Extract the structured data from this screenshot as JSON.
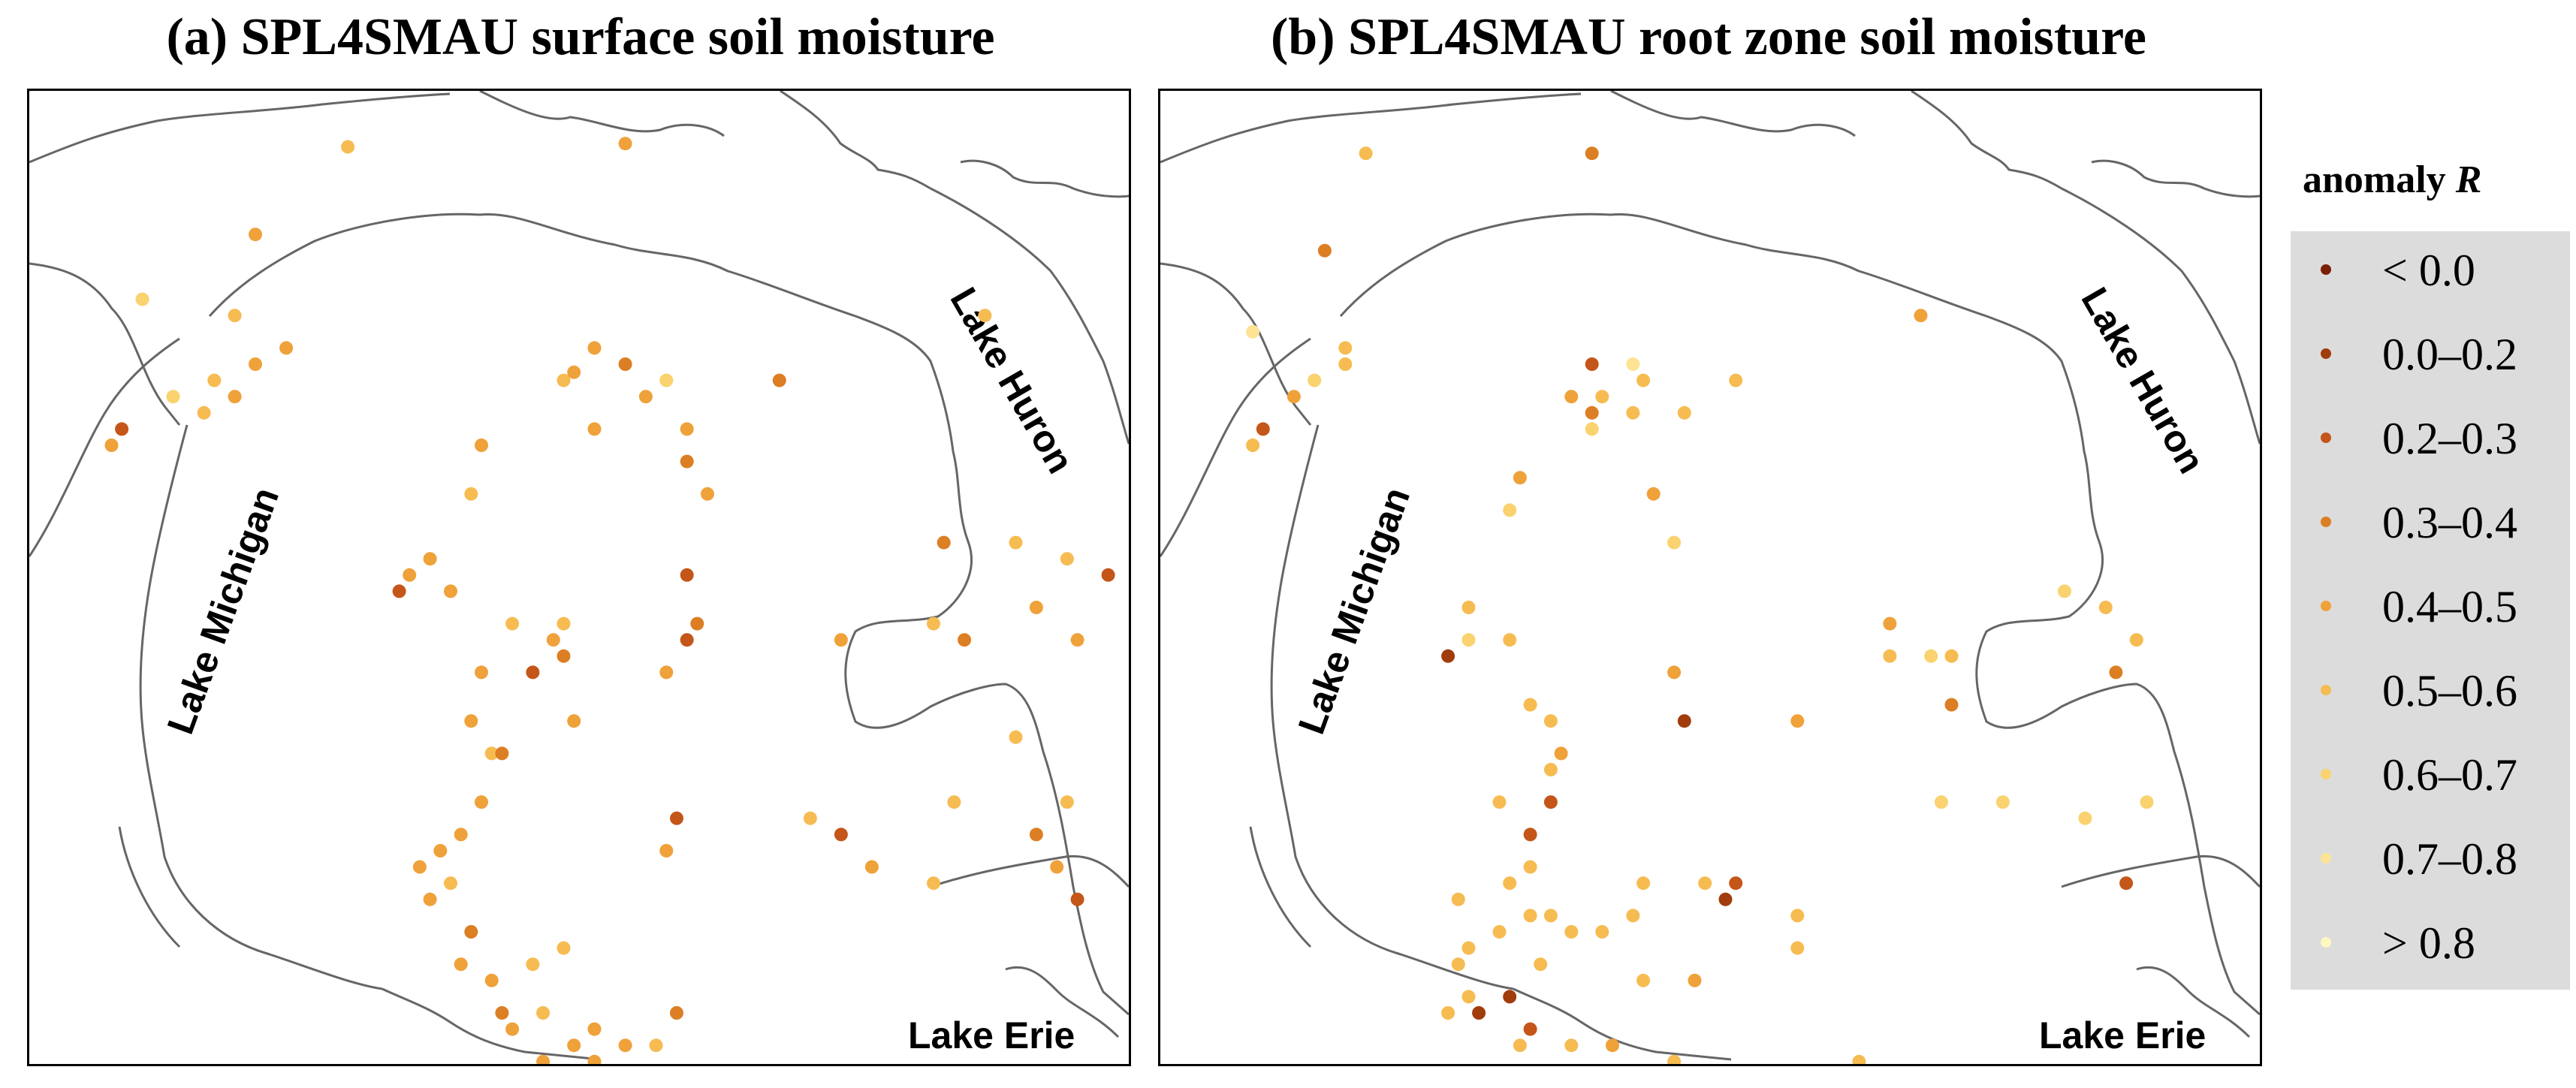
{
  "panels": [
    {
      "title": "(a) SPL4SMAU surface soil moisture"
    },
    {
      "title": "(b) SPL4SMAU root zone soil moisture"
    }
  ],
  "labels": {
    "lake_michigan": "Lake Michigan",
    "lake_huron": "Lake Huron",
    "lake_erie": "Lake Erie"
  },
  "legend": {
    "title_prefix": "anomaly ",
    "title_var": "R",
    "classes": [
      {
        "label": "< 0.0",
        "color": "#7a1f08"
      },
      {
        "label": "0.0–0.2",
        "color": "#a13c0d"
      },
      {
        "label": "0.2–0.3",
        "color": "#c4561a"
      },
      {
        "label": "0.3–0.4",
        "color": "#dc7e24"
      },
      {
        "label": "0.4–0.5",
        "color": "#efa13a"
      },
      {
        "label": "0.5–0.6",
        "color": "#f6bc52"
      },
      {
        "label": "0.6–0.7",
        "color": "#fad26f"
      },
      {
        "label": "0.7–0.8",
        "color": "#fde394"
      },
      {
        "label": "> 0.8",
        "color": "#fff7c0"
      }
    ]
  },
  "stations": {
    "a": [
      [
        0.31,
        0.016,
        5
      ],
      [
        0.58,
        0.014,
        4
      ],
      [
        0.22,
        0.07,
        4
      ],
      [
        0.11,
        0.11,
        6
      ],
      [
        0.2,
        0.12,
        5
      ],
      [
        0.25,
        0.14,
        4
      ],
      [
        0.22,
        0.15,
        4
      ],
      [
        0.18,
        0.16,
        5
      ],
      [
        0.17,
        0.18,
        5
      ],
      [
        0.14,
        0.17,
        6
      ],
      [
        0.2,
        0.17,
        4
      ],
      [
        0.09,
        0.19,
        2
      ],
      [
        0.08,
        0.2,
        4
      ],
      [
        0.55,
        0.14,
        4
      ],
      [
        0.52,
        0.16,
        5
      ],
      [
        0.58,
        0.15,
        3
      ],
      [
        0.53,
        0.155,
        4
      ],
      [
        0.6,
        0.17,
        4
      ],
      [
        0.55,
        0.19,
        4
      ],
      [
        0.62,
        0.16,
        6
      ],
      [
        0.64,
        0.19,
        4
      ],
      [
        0.73,
        0.16,
        3
      ],
      [
        0.93,
        0.12,
        5
      ],
      [
        0.44,
        0.2,
        4
      ],
      [
        0.43,
        0.23,
        5
      ],
      [
        0.64,
        0.21,
        3
      ],
      [
        0.66,
        0.23,
        4
      ],
      [
        0.39,
        0.27,
        4
      ],
      [
        0.37,
        0.28,
        4
      ],
      [
        0.36,
        0.29,
        2
      ],
      [
        0.41,
        0.29,
        4
      ],
      [
        0.64,
        0.28,
        2
      ],
      [
        0.65,
        0.31,
        3
      ],
      [
        0.47,
        0.31,
        5
      ],
      [
        0.52,
        0.31,
        5
      ],
      [
        0.51,
        0.32,
        4
      ],
      [
        0.52,
        0.33,
        3
      ],
      [
        0.49,
        0.34,
        2
      ],
      [
        0.44,
        0.34,
        4
      ],
      [
        0.62,
        0.34,
        4
      ],
      [
        0.64,
        0.32,
        2
      ],
      [
        0.79,
        0.32,
        4
      ],
      [
        0.89,
        0.26,
        3
      ],
      [
        0.96,
        0.26,
        5
      ],
      [
        1.01,
        0.27,
        5
      ],
      [
        0.98,
        0.3,
        4
      ],
      [
        0.88,
        0.31,
        5
      ],
      [
        0.91,
        0.32,
        3
      ],
      [
        1.02,
        0.32,
        4
      ],
      [
        1.05,
        0.28,
        2
      ],
      [
        0.43,
        0.37,
        4
      ],
      [
        0.45,
        0.39,
        5
      ],
      [
        0.44,
        0.42,
        4
      ],
      [
        0.42,
        0.44,
        4
      ],
      [
        0.4,
        0.45,
        4
      ],
      [
        0.38,
        0.46,
        4
      ],
      [
        0.41,
        0.47,
        5
      ],
      [
        0.39,
        0.48,
        4
      ],
      [
        0.53,
        0.37,
        4
      ],
      [
        0.46,
        0.39,
        3
      ],
      [
        0.96,
        0.38,
        5
      ],
      [
        0.9,
        0.42,
        5
      ],
      [
        1.01,
        0.42,
        5
      ],
      [
        0.98,
        0.44,
        3
      ],
      [
        0.63,
        0.43,
        2
      ],
      [
        0.62,
        0.45,
        4
      ],
      [
        0.76,
        0.43,
        5
      ],
      [
        0.79,
        0.44,
        2
      ],
      [
        0.82,
        0.46,
        4
      ],
      [
        0.88,
        0.47,
        5
      ],
      [
        1.0,
        0.46,
        4
      ],
      [
        1.02,
        0.48,
        2
      ],
      [
        0.43,
        0.5,
        3
      ],
      [
        0.42,
        0.52,
        4
      ],
      [
        0.45,
        0.53,
        4
      ],
      [
        0.49,
        0.52,
        5
      ],
      [
        0.52,
        0.51,
        5
      ],
      [
        0.46,
        0.55,
        3
      ],
      [
        0.47,
        0.56,
        4
      ],
      [
        0.5,
        0.55,
        5
      ],
      [
        0.55,
        0.56,
        4
      ],
      [
        0.58,
        0.57,
        4
      ],
      [
        0.63,
        0.55,
        3
      ],
      [
        0.53,
        0.57,
        4
      ],
      [
        0.5,
        0.58,
        4
      ],
      [
        0.55,
        0.58,
        4
      ],
      [
        0.61,
        0.57,
        5
      ]
    ],
    "b": [
      [
        0.2,
        0.02,
        5
      ],
      [
        0.42,
        0.02,
        3
      ],
      [
        0.16,
        0.08,
        3
      ],
      [
        0.09,
        0.13,
        7
      ],
      [
        0.18,
        0.14,
        5
      ],
      [
        0.18,
        0.15,
        5
      ],
      [
        0.15,
        0.16,
        6
      ],
      [
        0.13,
        0.17,
        4
      ],
      [
        0.1,
        0.19,
        2
      ],
      [
        0.09,
        0.2,
        5
      ],
      [
        0.42,
        0.15,
        2
      ],
      [
        0.4,
        0.17,
        4
      ],
      [
        0.42,
        0.18,
        3
      ],
      [
        0.43,
        0.17,
        5
      ],
      [
        0.47,
        0.16,
        5
      ],
      [
        0.46,
        0.18,
        5
      ],
      [
        0.42,
        0.19,
        6
      ],
      [
        0.46,
        0.15,
        7
      ],
      [
        0.56,
        0.16,
        5
      ],
      [
        0.51,
        0.18,
        5
      ],
      [
        0.74,
        0.12,
        4
      ],
      [
        0.35,
        0.22,
        4
      ],
      [
        0.34,
        0.24,
        6
      ],
      [
        0.48,
        0.23,
        4
      ],
      [
        0.5,
        0.26,
        6
      ],
      [
        0.3,
        0.3,
        5
      ],
      [
        0.3,
        0.32,
        6
      ],
      [
        0.34,
        0.32,
        5
      ],
      [
        0.28,
        0.33,
        1
      ],
      [
        0.36,
        0.36,
        5
      ],
      [
        0.38,
        0.37,
        5
      ],
      [
        0.39,
        0.39,
        4
      ],
      [
        0.38,
        0.4,
        5
      ],
      [
        0.38,
        0.42,
        2
      ],
      [
        0.36,
        0.44,
        2
      ],
      [
        0.36,
        0.46,
        5
      ],
      [
        0.5,
        0.34,
        4
      ],
      [
        0.51,
        0.37,
        1
      ],
      [
        0.62,
        0.37,
        4
      ],
      [
        0.71,
        0.31,
        4
      ],
      [
        0.71,
        0.33,
        5
      ],
      [
        0.75,
        0.33,
        6
      ],
      [
        0.77,
        0.33,
        5
      ],
      [
        0.77,
        0.36,
        3
      ],
      [
        0.88,
        0.29,
        6
      ],
      [
        0.92,
        0.3,
        5
      ],
      [
        0.95,
        0.32,
        5
      ],
      [
        0.93,
        0.34,
        3
      ],
      [
        0.76,
        0.42,
        6
      ],
      [
        0.82,
        0.42,
        6
      ],
      [
        0.9,
        0.43,
        6
      ],
      [
        0.94,
        0.47,
        2
      ],
      [
        0.96,
        0.42,
        6
      ],
      [
        0.33,
        0.42,
        5
      ],
      [
        0.34,
        0.47,
        5
      ],
      [
        0.29,
        0.48,
        5
      ],
      [
        0.3,
        0.51,
        5
      ],
      [
        0.33,
        0.5,
        5
      ],
      [
        0.36,
        0.49,
        5
      ],
      [
        0.38,
        0.49,
        5
      ],
      [
        0.4,
        0.5,
        5
      ],
      [
        0.43,
        0.5,
        5
      ],
      [
        0.46,
        0.49,
        5
      ],
      [
        0.47,
        0.47,
        5
      ],
      [
        0.53,
        0.47,
        5
      ],
      [
        0.55,
        0.48,
        1
      ],
      [
        0.56,
        0.47,
        2
      ],
      [
        0.62,
        0.51,
        5
      ],
      [
        0.62,
        0.49,
        5
      ],
      [
        0.52,
        0.53,
        4
      ],
      [
        0.47,
        0.53,
        5
      ],
      [
        0.29,
        0.52,
        5
      ],
      [
        0.3,
        0.54,
        5
      ],
      [
        0.28,
        0.55,
        5
      ],
      [
        0.31,
        0.55,
        1
      ],
      [
        0.34,
        0.54,
        1
      ],
      [
        0.36,
        0.56,
        2
      ],
      [
        0.37,
        0.52,
        5
      ],
      [
        0.35,
        0.57,
        5
      ],
      [
        0.4,
        0.57,
        5
      ],
      [
        0.44,
        0.57,
        4
      ],
      [
        0.5,
        0.58,
        5
      ],
      [
        0.56,
        0.59,
        5
      ],
      [
        0.68,
        0.58,
        5
      ],
      [
        0.75,
        0.59,
        1
      ]
    ]
  }
}
